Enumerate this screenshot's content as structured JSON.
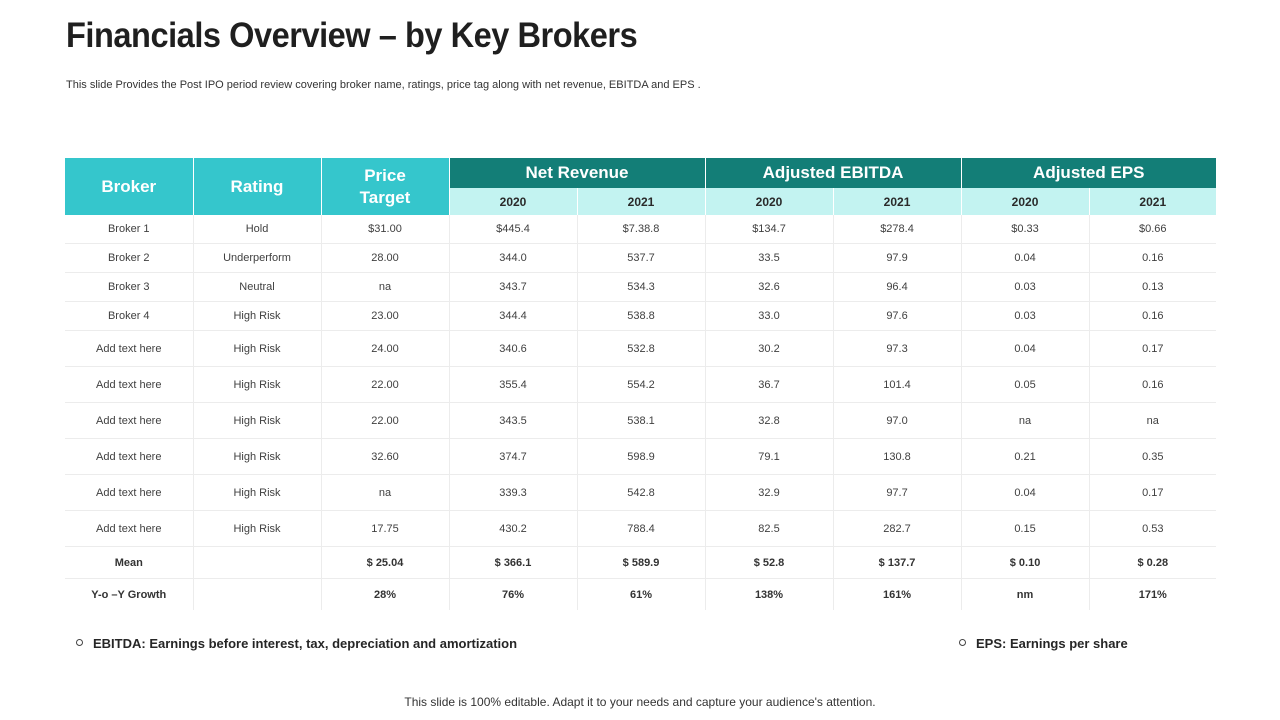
{
  "title": "Financials Overview – by Key Brokers",
  "subtitle": "This slide Provides the Post IPO period review covering broker name, ratings, price tag along with net revenue, EBITDA and EPS .",
  "table": {
    "headers": {
      "broker": "Broker",
      "rating": "Rating",
      "price_target": "Price Target",
      "net_revenue": "Net Revenue",
      "adjusted_ebitda": "Adjusted EBITDA",
      "adjusted_eps": "Adjusted EPS",
      "years": [
        "2020",
        "2021",
        "2020",
        "2021",
        "2020",
        "2021"
      ]
    },
    "rows": [
      [
        "Broker 1",
        "Hold",
        "$31.00",
        "$445.4",
        "$7.38.8",
        "$134.7",
        "$278.4",
        "$0.33",
        "$0.66"
      ],
      [
        "Broker 2",
        "Underperform",
        "28.00",
        "344.0",
        "537.7",
        "33.5",
        "97.9",
        "0.04",
        "0.16"
      ],
      [
        "Broker 3",
        "Neutral",
        "na",
        "343.7",
        "534.3",
        "32.6",
        "96.4",
        "0.03",
        "0.13"
      ],
      [
        "Broker 4",
        "High Risk",
        "23.00",
        "344.4",
        "538.8",
        "33.0",
        "97.6",
        "0.03",
        "0.16"
      ],
      [
        "Add text here",
        "High Risk",
        "24.00",
        "340.6",
        "532.8",
        "30.2",
        "97.3",
        "0.04",
        "0.17"
      ],
      [
        "Add text here",
        "High Risk",
        "22.00",
        "355.4",
        "554.2",
        "36.7",
        "101.4",
        "0.05",
        "0.16"
      ],
      [
        "Add text here",
        "High Risk",
        "22.00",
        "343.5",
        "538.1",
        "32.8",
        "97.0",
        "na",
        "na"
      ],
      [
        "Add text here",
        "High Risk",
        "32.60",
        "374.7",
        "598.9",
        "79.1",
        "130.8",
        "0.21",
        "0.35"
      ],
      [
        "Add text here",
        "High Risk",
        "na",
        "339.3",
        "542.8",
        "32.9",
        "97.7",
        "0.04",
        "0.17"
      ],
      [
        "Add text here",
        "High Risk",
        "17.75",
        "430.2",
        "788.4",
        "82.5",
        "282.7",
        "0.15",
        "0.53"
      ]
    ],
    "mean": [
      "Mean",
      "",
      "$ 25.04",
      "$ 366.1",
      "$ 589.9",
      "$ 52.8",
      "$ 137.7",
      "$ 0.10",
      "$ 0.28"
    ],
    "growth": [
      "Y-o –Y Growth",
      "",
      "28%",
      "76%",
      "61%",
      "138%",
      "161%",
      "nm",
      "171%"
    ]
  },
  "notes": {
    "ebitda": "EBITDA: Earnings before interest, tax, depreciation and amortization",
    "eps": "EPS: Earnings per share"
  },
  "footer": "This slide is 100% editable. Adapt it to your needs and capture your audience's attention."
}
